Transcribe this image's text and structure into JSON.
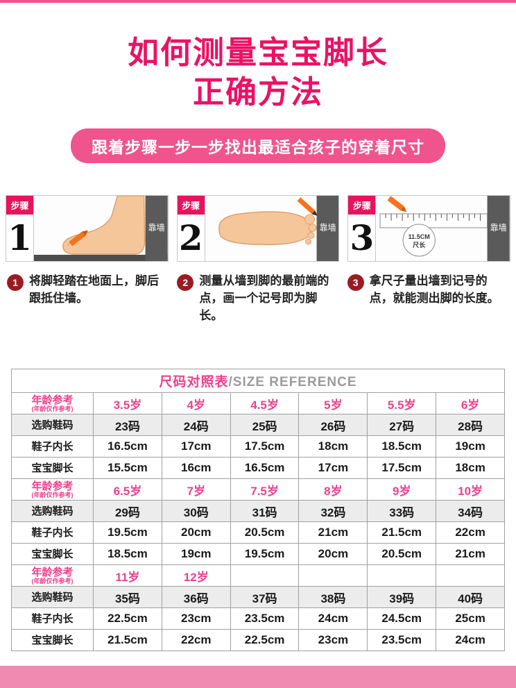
{
  "colors": {
    "title_pink": "#ec1164",
    "banner_pink": "#f0548c",
    "step_red": "#e9125d",
    "circle_red": "#9c1b20",
    "table_pink": "#f0408c",
    "bar_pink": "#f08ab1"
  },
  "page": {
    "title_line1": "如何测量宝宝脚长",
    "title_line2": "正确方法",
    "banner": "跟着步骤一步一步找出最适合孩子的穿着尺寸"
  },
  "steps": [
    {
      "label": "步骤",
      "number": "1",
      "wall_label": "靠墙"
    },
    {
      "label": "步骤",
      "number": "2",
      "wall_label": "靠墙"
    },
    {
      "label": "步骤",
      "number": "3",
      "wall_label": "靠墙",
      "ruler_line1": "11.5CM",
      "ruler_line2": "尺长"
    }
  ],
  "instructions": [
    {
      "number": "1",
      "text": "将脚轻踏在地面上，脚后跟抵住墙。"
    },
    {
      "number": "2",
      "text": "测量从墙到脚的最前端的点，画一个记号即为脚长。"
    },
    {
      "number": "3",
      "text": "拿尺子量出墙到记号的点，就能测出脚的长度。"
    }
  ],
  "size_table": {
    "title_cn": "尺码对照表",
    "title_en": "/SIZE REFERENCE",
    "rows": [
      {
        "type": "age",
        "header": "年龄参考",
        "subheader": "(年龄仅作参考)",
        "cells": [
          "3.5岁",
          "4岁",
          "4.5岁",
          "5岁",
          "5.5岁",
          "6岁"
        ]
      },
      {
        "type": "size",
        "header": "选购鞋码",
        "cells": [
          "23码",
          "24码",
          "25码",
          "26码",
          "27码",
          "28码"
        ]
      },
      {
        "type": "inner",
        "header": "鞋子内长",
        "cells": [
          "16.5cm",
          "17cm",
          "17.5cm",
          "18cm",
          "18.5cm",
          "19cm"
        ]
      },
      {
        "type": "foot",
        "header": "宝宝脚长",
        "cells": [
          "15.5cm",
          "16cm",
          "16.5cm",
          "17cm",
          "17.5cm",
          "18cm"
        ]
      },
      {
        "type": "age",
        "header": "年龄参考",
        "subheader": "(年龄仅作参考)",
        "cells": [
          "6.5岁",
          "7岁",
          "7.5岁",
          "8岁",
          "9岁",
          "10岁"
        ]
      },
      {
        "type": "size",
        "header": "选购鞋码",
        "cells": [
          "29码",
          "30码",
          "31码",
          "32码",
          "33码",
          "34码"
        ]
      },
      {
        "type": "inner",
        "header": "鞋子内长",
        "cells": [
          "19.5cm",
          "20cm",
          "20.5cm",
          "21cm",
          "21.5cm",
          "22cm"
        ]
      },
      {
        "type": "foot",
        "header": "宝宝脚长",
        "cells": [
          "18.5cm",
          "19cm",
          "19.5cm",
          "20cm",
          "20.5cm",
          "21cm"
        ]
      },
      {
        "type": "age",
        "header": "年龄参考",
        "subheader": "(年龄仅作参考)",
        "cells": [
          "11岁",
          "12岁",
          "",
          "",
          "",
          ""
        ]
      },
      {
        "type": "size",
        "header": "选购鞋码",
        "cells": [
          "35码",
          "36码",
          "37码",
          "38码",
          "39码",
          "40码"
        ]
      },
      {
        "type": "inner",
        "header": "鞋子内长",
        "cells": [
          "22.5cm",
          "23cm",
          "23.5cm",
          "24cm",
          "24.5cm",
          "25cm"
        ]
      },
      {
        "type": "foot",
        "header": "宝宝脚长",
        "cells": [
          "21.5cm",
          "22cm",
          "22.5cm",
          "23cm",
          "23.5cm",
          "24cm"
        ]
      }
    ]
  }
}
